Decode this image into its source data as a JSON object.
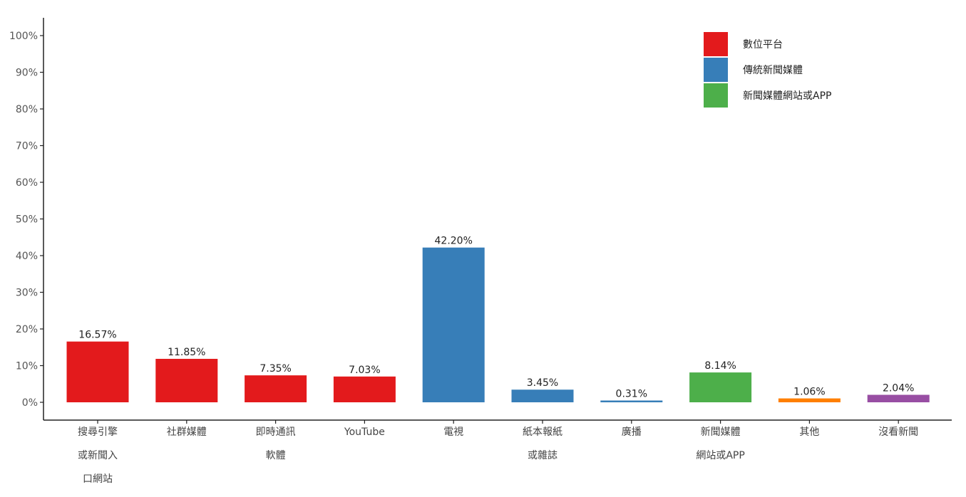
{
  "chart_data": {
    "type": "bar",
    "title": "",
    "xlabel": "",
    "ylabel": "",
    "ylim": [
      0,
      100
    ],
    "yticks": [
      0,
      10,
      20,
      30,
      40,
      50,
      60,
      70,
      80,
      90,
      100
    ],
    "ytick_labels": [
      "0%",
      "10%",
      "20%",
      "30%",
      "40%",
      "50%",
      "60%",
      "70%",
      "80%",
      "90%",
      "100%"
    ],
    "grid": false,
    "legend_position": "top-right",
    "legend": [
      {
        "label": "數位平台",
        "color": "#e31a1c"
      },
      {
        "label": "傳統新聞媒體",
        "color": "#377eb8"
      },
      {
        "label": "新聞媒體網站或APP",
        "color": "#4daf4a"
      }
    ],
    "categories": [
      {
        "lines": [
          "搜尋引擎",
          "或新聞入",
          "口網站"
        ],
        "value": 16.57,
        "label": "16.57%",
        "color": "#e31a1c"
      },
      {
        "lines": [
          "社群媒體"
        ],
        "value": 11.85,
        "label": "11.85%",
        "color": "#e31a1c"
      },
      {
        "lines": [
          "即時通訊",
          "軟體"
        ],
        "value": 7.35,
        "label": "7.35%",
        "color": "#e31a1c"
      },
      {
        "lines": [
          "YouTube"
        ],
        "value": 7.03,
        "label": "7.03%",
        "color": "#e31a1c"
      },
      {
        "lines": [
          "電視"
        ],
        "value": 42.2,
        "label": "42.20%",
        "color": "#377eb8"
      },
      {
        "lines": [
          "紙本報紙",
          "或雜誌"
        ],
        "value": 3.45,
        "label": "3.45%",
        "color": "#377eb8"
      },
      {
        "lines": [
          "廣播"
        ],
        "value": 0.31,
        "label": "0.31%",
        "color": "#377eb8"
      },
      {
        "lines": [
          "新聞媒體",
          "網站或APP"
        ],
        "value": 8.14,
        "label": "8.14%",
        "color": "#4daf4a"
      },
      {
        "lines": [
          "其他"
        ],
        "value": 1.06,
        "label": "1.06%",
        "color": "#ff7f00"
      },
      {
        "lines": [
          "沒看新聞"
        ],
        "value": 2.04,
        "label": "2.04%",
        "color": "#984ea3"
      }
    ]
  }
}
